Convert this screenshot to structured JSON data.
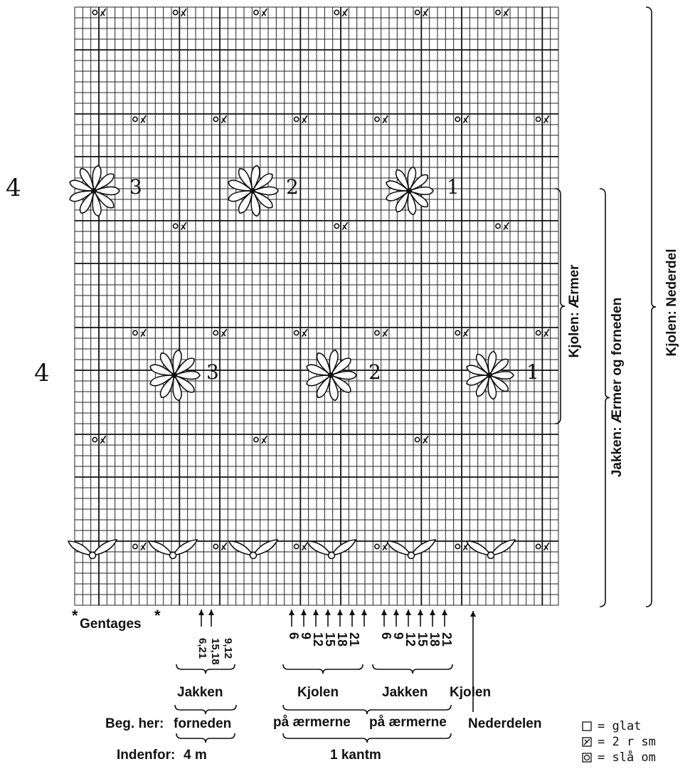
{
  "row_markers": [
    "4",
    "4"
  ],
  "motif_numbers_top": [
    "3",
    "2",
    "1"
  ],
  "motif_numbers_mid": [
    "3",
    "2",
    "1"
  ],
  "side_labels": {
    "inner": "Kjolen: Ærmer",
    "middle": "Jakken: Ærmer og forneden",
    "outer": "Kjolen: Nederdel"
  },
  "repeat_label": "Gentages",
  "repeat_star": "*",
  "arrow_groups": {
    "jakken_forneden": [
      "6,21",
      "15,18",
      "9,12"
    ],
    "kjolen_aermer": [
      "6",
      "9",
      "12",
      "15",
      "18",
      "21"
    ],
    "jakken_aermer": [
      "6",
      "9",
      "12",
      "15",
      "18",
      "21"
    ]
  },
  "group_labels": {
    "g1": "Jakken",
    "g2": "Kjolen",
    "g3": "Jakken",
    "g4": "Kjolen"
  },
  "start_row": {
    "prefix": "Beg. her:",
    "a": "forneden",
    "b": "på ærmerne",
    "c": "på ærmerne",
    "d": "Nederdelen"
  },
  "inside_row": {
    "prefix": "Indenfor:",
    "a": "4 m",
    "b": "1 kantm"
  },
  "legend": [
    {
      "symbol": "empty-square",
      "text": "= glat"
    },
    {
      "symbol": "slash-square",
      "text": "= 2 r sm"
    },
    {
      "symbol": "circle-square",
      "text": "= slå om"
    }
  ],
  "grid": {
    "columns": 60,
    "rows": 56
  }
}
